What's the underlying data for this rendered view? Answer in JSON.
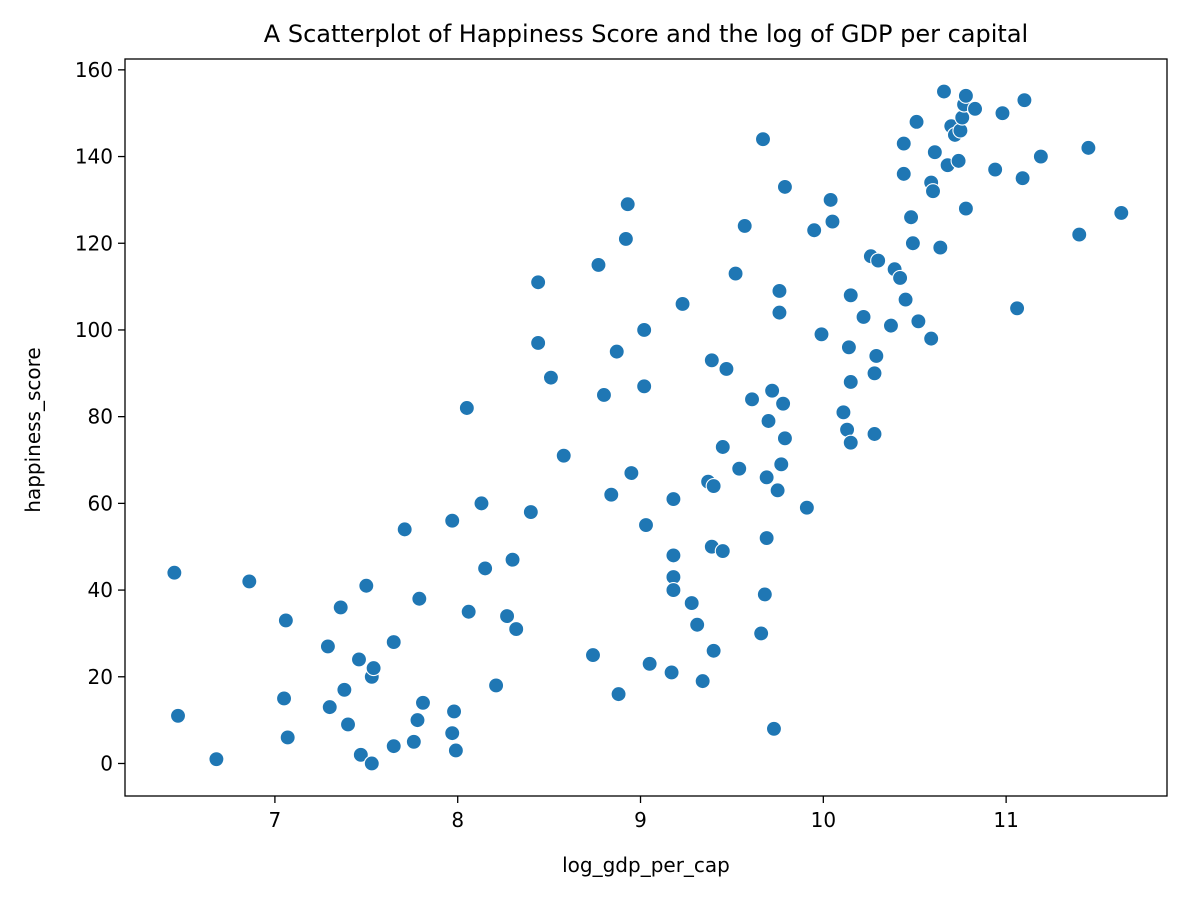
{
  "chart_data": {
    "type": "scatter",
    "title": "A Scatterplot of Happiness Score and the log of GDP per capital",
    "xlabel": "log_gdp_per_cap",
    "ylabel": "happiness_score",
    "xlim": [
      6.18,
      11.88
    ],
    "ylim": [
      -7.5,
      162.5
    ],
    "xticks": [
      7,
      8,
      9,
      10,
      11
    ],
    "yticks": [
      0,
      20,
      40,
      60,
      80,
      100,
      120,
      140,
      160
    ],
    "grid": false,
    "legend": "none",
    "marker_color": "#1f77b4",
    "points": [
      {
        "x": 6.45,
        "y": 44
      },
      {
        "x": 6.47,
        "y": 11
      },
      {
        "x": 6.68,
        "y": 1
      },
      {
        "x": 6.86,
        "y": 42
      },
      {
        "x": 7.06,
        "y": 33
      },
      {
        "x": 7.05,
        "y": 15
      },
      {
        "x": 7.07,
        "y": 6
      },
      {
        "x": 7.29,
        "y": 27
      },
      {
        "x": 7.3,
        "y": 13
      },
      {
        "x": 7.36,
        "y": 36
      },
      {
        "x": 7.38,
        "y": 17
      },
      {
        "x": 7.4,
        "y": 9
      },
      {
        "x": 7.46,
        "y": 24
      },
      {
        "x": 7.47,
        "y": 2
      },
      {
        "x": 7.5,
        "y": 41
      },
      {
        "x": 7.53,
        "y": 20
      },
      {
        "x": 7.54,
        "y": 22
      },
      {
        "x": 7.53,
        "y": 0
      },
      {
        "x": 7.65,
        "y": 28
      },
      {
        "x": 7.65,
        "y": 4
      },
      {
        "x": 7.71,
        "y": 54
      },
      {
        "x": 7.76,
        "y": 5
      },
      {
        "x": 7.78,
        "y": 10
      },
      {
        "x": 7.79,
        "y": 38
      },
      {
        "x": 7.81,
        "y": 14
      },
      {
        "x": 7.97,
        "y": 56
      },
      {
        "x": 7.98,
        "y": 12
      },
      {
        "x": 7.97,
        "y": 7
      },
      {
        "x": 7.99,
        "y": 3
      },
      {
        "x": 8.05,
        "y": 82
      },
      {
        "x": 8.06,
        "y": 35
      },
      {
        "x": 8.13,
        "y": 60
      },
      {
        "x": 8.15,
        "y": 45
      },
      {
        "x": 8.21,
        "y": 18
      },
      {
        "x": 8.27,
        "y": 34
      },
      {
        "x": 8.3,
        "y": 47
      },
      {
        "x": 8.32,
        "y": 31
      },
      {
        "x": 8.4,
        "y": 58
      },
      {
        "x": 8.44,
        "y": 111
      },
      {
        "x": 8.44,
        "y": 97
      },
      {
        "x": 8.51,
        "y": 89
      },
      {
        "x": 8.58,
        "y": 71
      },
      {
        "x": 8.74,
        "y": 25
      },
      {
        "x": 8.77,
        "y": 115
      },
      {
        "x": 8.8,
        "y": 85
      },
      {
        "x": 8.84,
        "y": 62
      },
      {
        "x": 8.87,
        "y": 95
      },
      {
        "x": 8.88,
        "y": 16
      },
      {
        "x": 8.92,
        "y": 121
      },
      {
        "x": 8.93,
        "y": 129
      },
      {
        "x": 8.95,
        "y": 67
      },
      {
        "x": 9.02,
        "y": 100
      },
      {
        "x": 9.02,
        "y": 87
      },
      {
        "x": 9.03,
        "y": 55
      },
      {
        "x": 9.05,
        "y": 23
      },
      {
        "x": 9.17,
        "y": 21
      },
      {
        "x": 9.18,
        "y": 61
      },
      {
        "x": 9.18,
        "y": 48
      },
      {
        "x": 9.18,
        "y": 43
      },
      {
        "x": 9.18,
        "y": 40
      },
      {
        "x": 9.23,
        "y": 106
      },
      {
        "x": 9.28,
        "y": 37
      },
      {
        "x": 9.31,
        "y": 32
      },
      {
        "x": 9.34,
        "y": 19
      },
      {
        "x": 9.37,
        "y": 65
      },
      {
        "x": 9.39,
        "y": 93
      },
      {
        "x": 9.39,
        "y": 50
      },
      {
        "x": 9.4,
        "y": 64
      },
      {
        "x": 9.4,
        "y": 26
      },
      {
        "x": 9.45,
        "y": 73
      },
      {
        "x": 9.45,
        "y": 49
      },
      {
        "x": 9.47,
        "y": 91
      },
      {
        "x": 9.52,
        "y": 113
      },
      {
        "x": 9.54,
        "y": 68
      },
      {
        "x": 9.57,
        "y": 124
      },
      {
        "x": 9.61,
        "y": 84
      },
      {
        "x": 9.66,
        "y": 30
      },
      {
        "x": 9.67,
        "y": 144
      },
      {
        "x": 9.68,
        "y": 39
      },
      {
        "x": 9.69,
        "y": 66
      },
      {
        "x": 9.69,
        "y": 52
      },
      {
        "x": 9.7,
        "y": 79
      },
      {
        "x": 9.72,
        "y": 86
      },
      {
        "x": 9.73,
        "y": 8
      },
      {
        "x": 9.75,
        "y": 63
      },
      {
        "x": 9.76,
        "y": 109
      },
      {
        "x": 9.76,
        "y": 104
      },
      {
        "x": 9.77,
        "y": 69
      },
      {
        "x": 9.78,
        "y": 83
      },
      {
        "x": 9.79,
        "y": 133
      },
      {
        "x": 9.79,
        "y": 75
      },
      {
        "x": 9.91,
        "y": 59
      },
      {
        "x": 9.95,
        "y": 123
      },
      {
        "x": 9.99,
        "y": 99
      },
      {
        "x": 10.04,
        "y": 130
      },
      {
        "x": 10.05,
        "y": 125
      },
      {
        "x": 10.11,
        "y": 81
      },
      {
        "x": 10.13,
        "y": 77
      },
      {
        "x": 10.14,
        "y": 96
      },
      {
        "x": 10.15,
        "y": 108
      },
      {
        "x": 10.15,
        "y": 88
      },
      {
        "x": 10.15,
        "y": 74
      },
      {
        "x": 10.22,
        "y": 103
      },
      {
        "x": 10.26,
        "y": 117
      },
      {
        "x": 10.28,
        "y": 90
      },
      {
        "x": 10.28,
        "y": 76
      },
      {
        "x": 10.29,
        "y": 94
      },
      {
        "x": 10.3,
        "y": 116
      },
      {
        "x": 10.37,
        "y": 101
      },
      {
        "x": 10.39,
        "y": 114
      },
      {
        "x": 10.42,
        "y": 112
      },
      {
        "x": 10.44,
        "y": 143
      },
      {
        "x": 10.44,
        "y": 136
      },
      {
        "x": 10.45,
        "y": 107
      },
      {
        "x": 10.48,
        "y": 126
      },
      {
        "x": 10.49,
        "y": 120
      },
      {
        "x": 10.51,
        "y": 148
      },
      {
        "x": 10.52,
        "y": 102
      },
      {
        "x": 10.59,
        "y": 98
      },
      {
        "x": 10.59,
        "y": 134
      },
      {
        "x": 10.6,
        "y": 132
      },
      {
        "x": 10.61,
        "y": 141
      },
      {
        "x": 10.64,
        "y": 119
      },
      {
        "x": 10.66,
        "y": 155
      },
      {
        "x": 10.68,
        "y": 138
      },
      {
        "x": 10.7,
        "y": 147
      },
      {
        "x": 10.72,
        "y": 145
      },
      {
        "x": 10.74,
        "y": 139
      },
      {
        "x": 10.75,
        "y": 146
      },
      {
        "x": 10.76,
        "y": 149
      },
      {
        "x": 10.77,
        "y": 152
      },
      {
        "x": 10.78,
        "y": 154
      },
      {
        "x": 10.78,
        "y": 128
      },
      {
        "x": 10.83,
        "y": 151
      },
      {
        "x": 10.94,
        "y": 137
      },
      {
        "x": 10.98,
        "y": 150
      },
      {
        "x": 11.06,
        "y": 105
      },
      {
        "x": 11.09,
        "y": 135
      },
      {
        "x": 11.1,
        "y": 153
      },
      {
        "x": 11.19,
        "y": 140
      },
      {
        "x": 11.4,
        "y": 122
      },
      {
        "x": 11.45,
        "y": 142
      },
      {
        "x": 11.63,
        "y": 127
      }
    ]
  }
}
